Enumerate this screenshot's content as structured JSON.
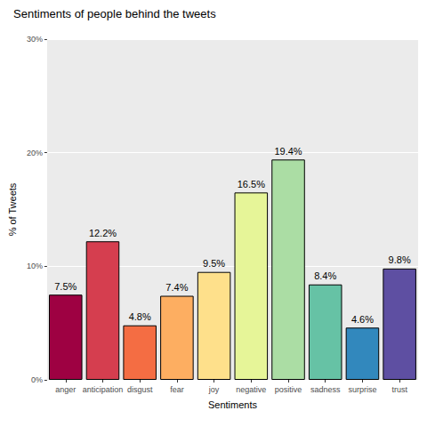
{
  "chart_data": {
    "type": "bar",
    "title": "Sentiments of people behind the tweets",
    "x_label": "Sentiments",
    "y_label": "% of Tweets",
    "categories": [
      "anger",
      "anticipation",
      "disgust",
      "fear",
      "joy",
      "negative",
      "positive",
      "sadness",
      "surprise",
      "trust"
    ],
    "values": [
      7.5,
      12.2,
      4.8,
      7.4,
      9.5,
      16.5,
      19.4,
      8.4,
      4.6,
      9.8
    ],
    "value_labels": [
      "7.5%",
      "12.2%",
      "4.8%",
      "7.4%",
      "9.5%",
      "16.5%",
      "19.4%",
      "8.4%",
      "4.6%",
      "9.8%"
    ],
    "colors": [
      "#9e0142",
      "#d53e4f",
      "#f46d43",
      "#fdae61",
      "#fee08b",
      "#e6f598",
      "#abdda4",
      "#66c2a5",
      "#3288bd",
      "#5e4fa2"
    ],
    "ylim": [
      0,
      30
    ],
    "yticks": [
      {
        "value": 0,
        "label": "0%"
      },
      {
        "value": 10,
        "label": "10%"
      },
      {
        "value": 20,
        "label": "20%"
      },
      {
        "value": 30,
        "label": "30%"
      }
    ],
    "grid": true,
    "data_labels": true
  }
}
